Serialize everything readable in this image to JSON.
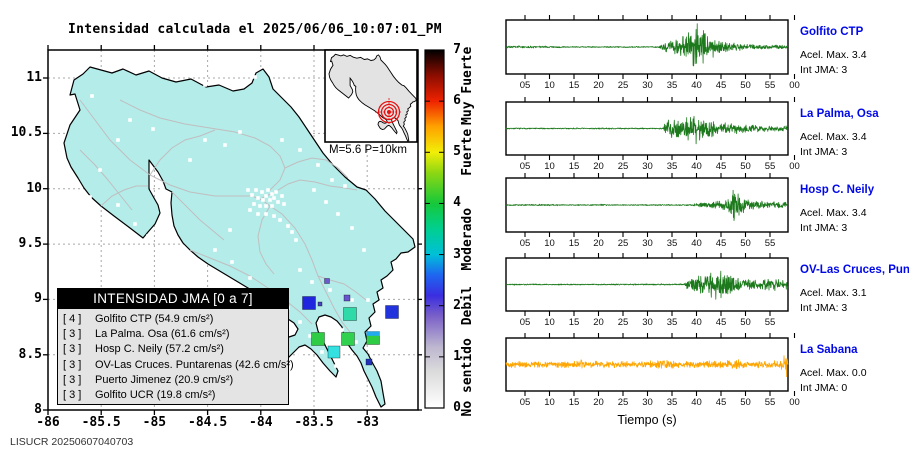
{
  "title": "Intensidad calculada el 2025/06/06_10:07:01_PM",
  "footer": "LISUCR 20250607040703",
  "map": {
    "x_tick_labels": [
      "-86",
      "-85.5",
      "-85",
      "-84.5",
      "-84",
      "-83.5",
      "-83"
    ],
    "y_tick_labels": [
      "11",
      "10.5",
      "10",
      "9.5",
      "9",
      "8.5",
      "8"
    ],
    "land_color": "#b4ecea",
    "inset": {
      "caption": "M=5.6 P=10km",
      "epicenter_color": "#e81010"
    },
    "legend": {
      "title": "INTENSIDAD JMA [0 a 7]",
      "entries": [
        {
          "code": "[ 4 ]",
          "label": "Golfito CTP (54.9 cm/s²)"
        },
        {
          "code": "[ 3 ]",
          "label": "La Palma. Osa (61.6 cm/s²)"
        },
        {
          "code": "[ 3 ]",
          "label": "Hosp C. Neily (57.2 cm/s²)"
        },
        {
          "code": "[ 3 ]",
          "label": "OV-Las Cruces. Puntarenas (42.6 cm/s²)"
        },
        {
          "code": "[ 3 ]",
          "label": "Puerto Jimenez (20.9 cm/s²)"
        },
        {
          "code": "[ 3 ]",
          "label": "Golfito UCR (19.8 cm/s²)"
        }
      ]
    },
    "intensity_markers": [
      {
        "x": 327,
        "y": 281,
        "size": 5,
        "color": "#6a5acd"
      },
      {
        "x": 309,
        "y": 303,
        "size": 13,
        "color": "#2026dd"
      },
      {
        "x": 320,
        "y": 304,
        "size": 4,
        "color": "#4444bb"
      },
      {
        "x": 347,
        "y": 298,
        "size": 6,
        "color": "#6655cc"
      },
      {
        "x": 350,
        "y": 314,
        "size": 13,
        "color": "#2fd9a8"
      },
      {
        "x": 392,
        "y": 312,
        "size": 13,
        "color": "#2233dd"
      },
      {
        "x": 318,
        "y": 339,
        "size": 13,
        "color": "#2ecc45"
      },
      {
        "x": 348,
        "y": 339,
        "size": 13,
        "color": "#30d14e"
      },
      {
        "x": 373,
        "y": 338,
        "size": 13,
        "color": "#2ecc45",
        "stripe": "#22aaee"
      },
      {
        "x": 334,
        "y": 352,
        "size": 12,
        "color": "#35e0e0"
      },
      {
        "x": 369,
        "y": 362,
        "size": 6,
        "color": "#2233bb"
      }
    ]
  },
  "colorbar": {
    "tick_labels": [
      "0",
      "1",
      "2",
      "3",
      "4",
      "5",
      "6",
      "7"
    ],
    "categories": [
      {
        "label": "No sentido",
        "intensity": 0.6
      },
      {
        "label": "Debil",
        "intensity": 2.0
      },
      {
        "label": "Moderado",
        "intensity": 3.3
      },
      {
        "label": "Fuerte",
        "intensity": 5.0
      },
      {
        "label": "Muy Fuerte",
        "intensity": 6.3
      }
    ],
    "gradient_stops": [
      {
        "intensity": 0.0,
        "color": "#ffffff"
      },
      {
        "intensity": 0.7,
        "color": "#dcdcdc"
      },
      {
        "intensity": 1.2,
        "color": "#bdb6cf"
      },
      {
        "intensity": 1.8,
        "color": "#7a60c8"
      },
      {
        "intensity": 2.2,
        "color": "#3a2ee0"
      },
      {
        "intensity": 2.6,
        "color": "#1e66f0"
      },
      {
        "intensity": 3.0,
        "color": "#00c0d8"
      },
      {
        "intensity": 3.5,
        "color": "#00cf90"
      },
      {
        "intensity": 4.0,
        "color": "#16c83a"
      },
      {
        "intensity": 4.6,
        "color": "#8ed712"
      },
      {
        "intensity": 5.0,
        "color": "#f2ee08"
      },
      {
        "intensity": 5.5,
        "color": "#ffa200"
      },
      {
        "intensity": 6.0,
        "color": "#ee2200"
      },
      {
        "intensity": 6.5,
        "color": "#8c0d00"
      },
      {
        "intensity": 7.0,
        "color": "#000000"
      }
    ]
  },
  "chart_data": {
    "type": "line",
    "xlabel": "Tiempo (s)",
    "x_unit": "s",
    "x_range": [
      0,
      60
    ],
    "amplitude_unit": "relative",
    "panels": [
      {
        "station": "Golfito CTP",
        "acel_label": "Acel. Max. 3.4",
        "int_label": "Int JMA: 3",
        "color": "#1c7a1c",
        "seed": 3,
        "x_ticks": [
          "05",
          "10",
          "15",
          "20",
          "25",
          "30",
          "35",
          "40",
          "45",
          "50",
          "55",
          "00"
        ],
        "envelope": [
          [
            0,
            1.1
          ],
          [
            10,
            0.9
          ],
          [
            14,
            0.6
          ],
          [
            32,
            0.6
          ],
          [
            34,
            5
          ],
          [
            36,
            9
          ],
          [
            38,
            14
          ],
          [
            39.5,
            24
          ],
          [
            41,
            16
          ],
          [
            42.5,
            11
          ],
          [
            44,
            8
          ],
          [
            46,
            5
          ],
          [
            48,
            3.5
          ],
          [
            51,
            2.5
          ],
          [
            55,
            2
          ],
          [
            60,
            1.8
          ]
        ]
      },
      {
        "station": "La Palma, Osa",
        "acel_label": "Acel. Max. 3.4",
        "int_label": "Int JMA: 3",
        "color": "#1c7a1c",
        "seed": 7,
        "x_ticks": [
          "05",
          "10",
          "15",
          "20",
          "25",
          "30",
          "35",
          "40",
          "45",
          "50",
          "55",
          "00"
        ],
        "envelope": [
          [
            0,
            0.6
          ],
          [
            33,
            0.6
          ],
          [
            34,
            10
          ],
          [
            35.5,
            9
          ],
          [
            37,
            11
          ],
          [
            39,
            12
          ],
          [
            40,
            15
          ],
          [
            41.5,
            11
          ],
          [
            43,
            9
          ],
          [
            45,
            7
          ],
          [
            47,
            6
          ],
          [
            49,
            4.5
          ],
          [
            51,
            3.5
          ],
          [
            53,
            3
          ],
          [
            56,
            2.8
          ],
          [
            60,
            2.6
          ]
        ]
      },
      {
        "station": "Hosp C. Neily",
        "acel_label": "Acel. Max. 3.4",
        "int_label": "Int JMA: 3",
        "color": "#1c7a1c",
        "seed": 13,
        "x_ticks": [
          "05",
          "10",
          "15",
          "20",
          "25",
          "30",
          "35",
          "40",
          "45",
          "50",
          "55"
        ],
        "envelope": [
          [
            0,
            0.5
          ],
          [
            11,
            0.8
          ],
          [
            12,
            0.5
          ],
          [
            20,
            0.6
          ],
          [
            21,
            0.9
          ],
          [
            22,
            0.5
          ],
          [
            39,
            0.6
          ],
          [
            40,
            1.8
          ],
          [
            42,
            2.5
          ],
          [
            44,
            3.5
          ],
          [
            46,
            5
          ],
          [
            47,
            9
          ],
          [
            47.6,
            20
          ],
          [
            48.3,
            12
          ],
          [
            49.5,
            7
          ],
          [
            51,
            5
          ],
          [
            53,
            4
          ],
          [
            55,
            3.2
          ],
          [
            60,
            2.6
          ]
        ]
      },
      {
        "station": "OV-Las Cruces, Puntar",
        "acel_label": "Acel. Max. 3.1",
        "int_label": "Int JMA: 3",
        "color": "#1c7a1c",
        "seed": 21,
        "x_ticks": [
          "05",
          "10",
          "15",
          "20",
          "25",
          "30",
          "35",
          "40",
          "45",
          "50",
          "55"
        ],
        "envelope": [
          [
            0,
            0.5
          ],
          [
            7,
            0.8
          ],
          [
            8,
            0.5
          ],
          [
            33,
            0.7
          ],
          [
            37.5,
            0.7
          ],
          [
            38.3,
            6
          ],
          [
            39.5,
            8
          ],
          [
            41,
            10
          ],
          [
            42.5,
            12
          ],
          [
            44,
            13
          ],
          [
            45.3,
            15
          ],
          [
            46.5,
            11
          ],
          [
            48,
            8
          ],
          [
            50,
            6
          ],
          [
            52,
            4.5
          ],
          [
            53.5,
            5.5
          ],
          [
            55,
            6.5
          ],
          [
            56.5,
            5
          ],
          [
            58,
            4.5
          ],
          [
            60,
            4.5
          ]
        ]
      },
      {
        "station": "La Sabana",
        "acel_label": "Acel. Max. 0.0",
        "int_label": "Int JMA: 0",
        "color": "#ffa500",
        "seed": 42,
        "x_ticks": [
          "05",
          "10",
          "15",
          "20",
          "25",
          "30",
          "35",
          "40",
          "45",
          "50",
          "55",
          "00"
        ],
        "envelope": [
          [
            0,
            3
          ],
          [
            5,
            3.2
          ],
          [
            8,
            2.8
          ],
          [
            12,
            3
          ],
          [
            16,
            4.6
          ],
          [
            18,
            3.2
          ],
          [
            22,
            3.4
          ],
          [
            26,
            3
          ],
          [
            30,
            3.2
          ],
          [
            33,
            4.4
          ],
          [
            36,
            3.2
          ],
          [
            40,
            3
          ],
          [
            44,
            3.4
          ],
          [
            48,
            5
          ],
          [
            50,
            3.4
          ],
          [
            53,
            3.2
          ],
          [
            55,
            3.6
          ],
          [
            57,
            4
          ],
          [
            58,
            9
          ],
          [
            59,
            16
          ],
          [
            59.6,
            22
          ],
          [
            60,
            18
          ]
        ]
      }
    ]
  }
}
